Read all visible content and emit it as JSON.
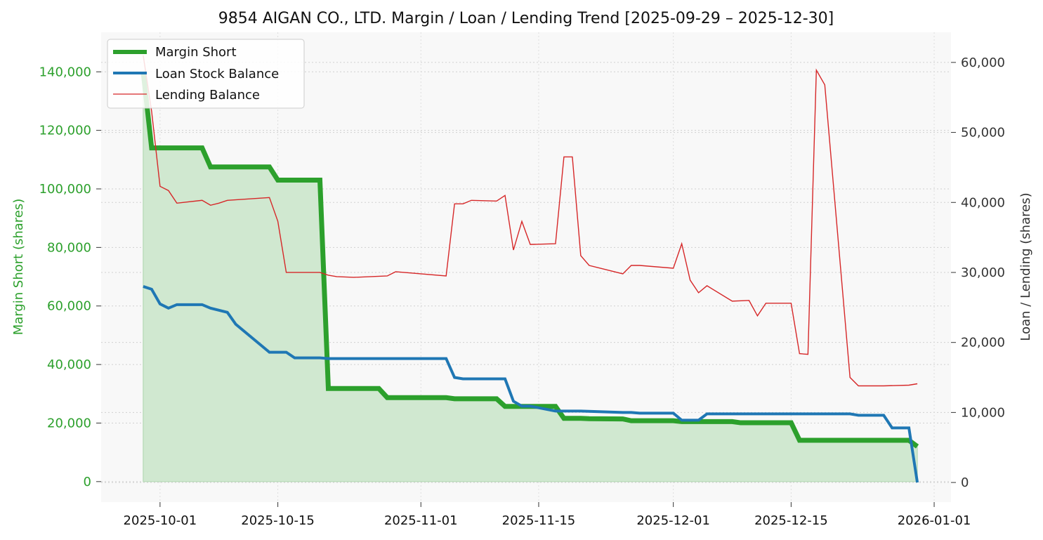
{
  "chart_data": {
    "type": "line",
    "title": "9854 AIGAN CO., LTD. Margin / Loan / Lending Trend [2025-09-29 – 2025-12-30]",
    "ylabel_left": "Margin Short (shares)",
    "ylabel_right": "Loan / Lending (shares)",
    "xlabel": "",
    "x_ticks": [
      "2025-10-01",
      "2025-10-15",
      "2025-11-01",
      "2025-11-15",
      "2025-12-01",
      "2025-12-15",
      "2026-01-01"
    ],
    "y_left_ticks": [
      "0",
      "20,000",
      "40,000",
      "60,000",
      "80,000",
      "100,000",
      "120,000",
      "140,000"
    ],
    "y_right_ticks": [
      "0",
      "10,000",
      "20,000",
      "30,000",
      "40,000",
      "50,000",
      "60,000"
    ],
    "y_left_range": [
      -7000,
      153500
    ],
    "y_right_range": [
      -2800,
      64300
    ],
    "x_range": [
      "2025-09-24",
      "2026-01-03"
    ],
    "grid": true,
    "legend_position": "top-left",
    "colors": {
      "margin": "#2ca02c",
      "margin_fill": "#d0e8d0",
      "loan": "#1f77b4",
      "lending": "#d62728",
      "left_axis_text": "#2ca02c",
      "plot_bg": "#f8f8f8"
    },
    "series": [
      {
        "name": "Margin Short",
        "axis": "left",
        "points": [
          [
            "2025-09-29",
            140000
          ],
          [
            "2025-09-30",
            114000
          ],
          [
            "2025-10-01",
            114000
          ],
          [
            "2025-10-02",
            114000
          ],
          [
            "2025-10-03",
            114000
          ],
          [
            "2025-10-06",
            114000
          ],
          [
            "2025-10-07",
            107500
          ],
          [
            "2025-10-08",
            107500
          ],
          [
            "2025-10-09",
            107500
          ],
          [
            "2025-10-10",
            107500
          ],
          [
            "2025-10-14",
            107500
          ],
          [
            "2025-10-15",
            103000
          ],
          [
            "2025-10-16",
            103000
          ],
          [
            "2025-10-17",
            103000
          ],
          [
            "2025-10-20",
            103000
          ],
          [
            "2025-10-21",
            31800
          ],
          [
            "2025-10-22",
            31800
          ],
          [
            "2025-10-23",
            31800
          ],
          [
            "2025-10-24",
            31800
          ],
          [
            "2025-10-27",
            31800
          ],
          [
            "2025-10-28",
            28700
          ],
          [
            "2025-10-29",
            28700
          ],
          [
            "2025-10-30",
            28700
          ],
          [
            "2025-10-31",
            28700
          ],
          [
            "2025-11-04",
            28700
          ],
          [
            "2025-11-05",
            28300
          ],
          [
            "2025-11-06",
            28300
          ],
          [
            "2025-11-07",
            28300
          ],
          [
            "2025-11-10",
            28300
          ],
          [
            "2025-11-11",
            25700
          ],
          [
            "2025-11-12",
            25700
          ],
          [
            "2025-11-13",
            25700
          ],
          [
            "2025-11-14",
            25700
          ],
          [
            "2025-11-17",
            25700
          ],
          [
            "2025-11-18",
            21600
          ],
          [
            "2025-11-19",
            21600
          ],
          [
            "2025-11-20",
            21600
          ],
          [
            "2025-11-21",
            21500
          ],
          [
            "2025-11-25",
            21400
          ],
          [
            "2025-11-26",
            20800
          ],
          [
            "2025-11-27",
            20800
          ],
          [
            "2025-11-28",
            20800
          ],
          [
            "2025-12-01",
            20800
          ],
          [
            "2025-12-02",
            20500
          ],
          [
            "2025-12-03",
            20500
          ],
          [
            "2025-12-04",
            20500
          ],
          [
            "2025-12-05",
            20500
          ],
          [
            "2025-12-08",
            20500
          ],
          [
            "2025-12-09",
            20100
          ],
          [
            "2025-12-10",
            20100
          ],
          [
            "2025-12-11",
            20100
          ],
          [
            "2025-12-12",
            20100
          ],
          [
            "2025-12-15",
            20100
          ],
          [
            "2025-12-16",
            14100
          ],
          [
            "2025-12-17",
            14100
          ],
          [
            "2025-12-18",
            14100
          ],
          [
            "2025-12-19",
            14100
          ],
          [
            "2025-12-22",
            14100
          ],
          [
            "2025-12-23",
            14100
          ],
          [
            "2025-12-24",
            14100
          ],
          [
            "2025-12-25",
            14100
          ],
          [
            "2025-12-26",
            14100
          ],
          [
            "2025-12-29",
            14100
          ],
          [
            "2025-12-30",
            12000
          ]
        ]
      },
      {
        "name": "Loan Stock Balance",
        "axis": "right",
        "points": [
          [
            "2025-09-29",
            28000
          ],
          [
            "2025-09-30",
            27600
          ],
          [
            "2025-10-01",
            25500
          ],
          [
            "2025-10-02",
            24900
          ],
          [
            "2025-10-03",
            25400
          ],
          [
            "2025-10-06",
            25400
          ],
          [
            "2025-10-07",
            24900
          ],
          [
            "2025-10-08",
            24600
          ],
          [
            "2025-10-09",
            24300
          ],
          [
            "2025-10-10",
            22600
          ],
          [
            "2025-10-14",
            18600
          ],
          [
            "2025-10-15",
            18600
          ],
          [
            "2025-10-16",
            18600
          ],
          [
            "2025-10-17",
            17800
          ],
          [
            "2025-10-20",
            17800
          ],
          [
            "2025-10-21",
            17700
          ],
          [
            "2025-11-04",
            17700
          ],
          [
            "2025-11-05",
            15000
          ],
          [
            "2025-11-06",
            14800
          ],
          [
            "2025-11-07",
            14800
          ],
          [
            "2025-11-10",
            14800
          ],
          [
            "2025-11-11",
            14800
          ],
          [
            "2025-11-12",
            11600
          ],
          [
            "2025-11-13",
            10900
          ],
          [
            "2025-11-14",
            10900
          ],
          [
            "2025-11-17",
            10200
          ],
          [
            "2025-11-18",
            10200
          ],
          [
            "2025-11-19",
            10200
          ],
          [
            "2025-11-20",
            10200
          ],
          [
            "2025-11-25",
            10000
          ],
          [
            "2025-11-26",
            10000
          ],
          [
            "2025-11-27",
            9900
          ],
          [
            "2025-12-01",
            9900
          ],
          [
            "2025-12-02",
            8900
          ],
          [
            "2025-12-03",
            8900
          ],
          [
            "2025-12-04",
            8900
          ],
          [
            "2025-12-05",
            9800
          ],
          [
            "2025-12-22",
            9800
          ],
          [
            "2025-12-23",
            9600
          ],
          [
            "2025-12-26",
            9600
          ],
          [
            "2025-12-27",
            7800
          ],
          [
            "2025-12-29",
            7800
          ],
          [
            "2025-12-30",
            0
          ]
        ]
      },
      {
        "name": "Lending Balance",
        "axis": "right",
        "points": [
          [
            "2025-09-29",
            61000
          ],
          [
            "2025-09-30",
            53000
          ],
          [
            "2025-10-01",
            42300
          ],
          [
            "2025-10-02",
            41700
          ],
          [
            "2025-10-03",
            39900
          ],
          [
            "2025-10-06",
            40300
          ],
          [
            "2025-10-07",
            39600
          ],
          [
            "2025-10-08",
            39900
          ],
          [
            "2025-10-09",
            40300
          ],
          [
            "2025-10-14",
            40700
          ],
          [
            "2025-10-15",
            37300
          ],
          [
            "2025-10-16",
            30000
          ],
          [
            "2025-10-17",
            30000
          ],
          [
            "2025-10-20",
            30000
          ],
          [
            "2025-10-21",
            29600
          ],
          [
            "2025-10-22",
            29400
          ],
          [
            "2025-10-24",
            29300
          ],
          [
            "2025-10-28",
            29500
          ],
          [
            "2025-10-29",
            30100
          ],
          [
            "2025-10-30",
            30000
          ],
          [
            "2025-11-04",
            29500
          ],
          [
            "2025-11-05",
            39800
          ],
          [
            "2025-11-06",
            39800
          ],
          [
            "2025-11-07",
            40300
          ],
          [
            "2025-11-10",
            40200
          ],
          [
            "2025-11-11",
            41000
          ],
          [
            "2025-11-12",
            33200
          ],
          [
            "2025-11-13",
            37300
          ],
          [
            "2025-11-14",
            34000
          ],
          [
            "2025-11-17",
            34100
          ],
          [
            "2025-11-18",
            46500
          ],
          [
            "2025-11-19",
            46500
          ],
          [
            "2025-11-20",
            32400
          ],
          [
            "2025-11-21",
            31000
          ],
          [
            "2025-11-25",
            29800
          ],
          [
            "2025-11-26",
            31000
          ],
          [
            "2025-11-27",
            31000
          ],
          [
            "2025-12-01",
            30600
          ],
          [
            "2025-12-02",
            34100
          ],
          [
            "2025-12-03",
            28900
          ],
          [
            "2025-12-04",
            27100
          ],
          [
            "2025-12-05",
            28100
          ],
          [
            "2025-12-08",
            25900
          ],
          [
            "2025-12-10",
            26000
          ],
          [
            "2025-12-11",
            23800
          ],
          [
            "2025-12-12",
            25600
          ],
          [
            "2025-12-15",
            25600
          ],
          [
            "2025-12-16",
            18400
          ],
          [
            "2025-12-17",
            18300
          ],
          [
            "2025-12-18",
            58900
          ],
          [
            "2025-12-19",
            56800
          ],
          [
            "2025-12-22",
            15000
          ],
          [
            "2025-12-23",
            13800
          ],
          [
            "2025-12-26",
            13800
          ],
          [
            "2025-12-29",
            13900
          ],
          [
            "2025-12-30",
            14100
          ]
        ]
      }
    ]
  }
}
